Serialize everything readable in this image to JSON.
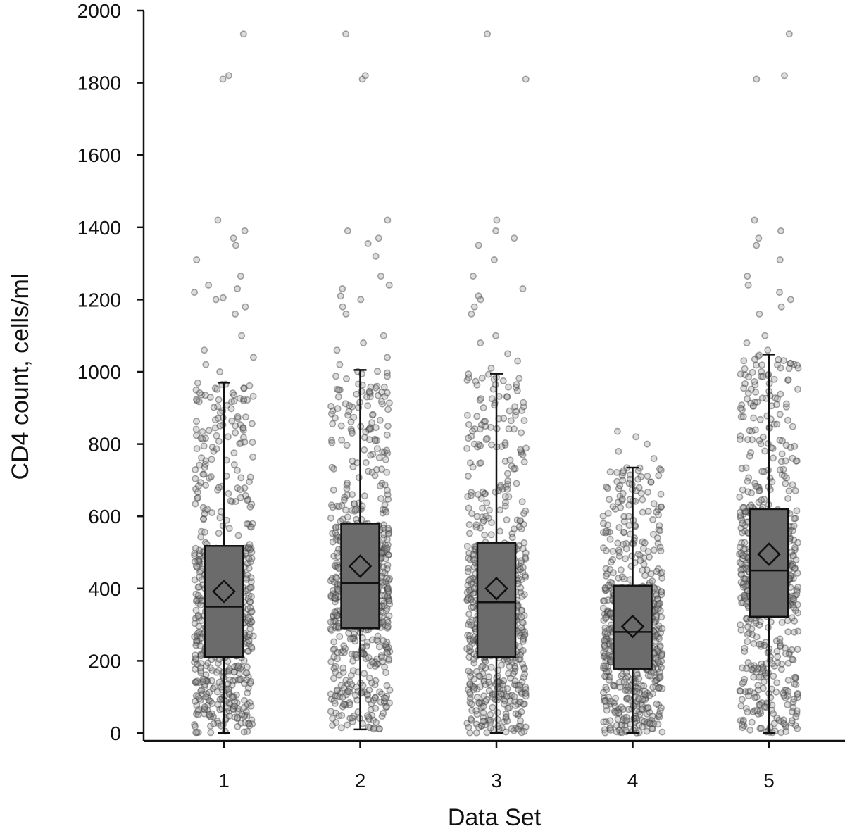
{
  "chart_data": {
    "type": "box",
    "title": "",
    "xlabel": "Data Set",
    "ylabel": "CD4 count, cells/ml",
    "ylim": [
      0,
      2000
    ],
    "yticks": [
      0,
      200,
      400,
      600,
      800,
      1000,
      1200,
      1400,
      1600,
      1800,
      2000
    ],
    "categories": [
      "1",
      "2",
      "3",
      "4",
      "5"
    ],
    "grid": false,
    "legend": "none",
    "colors": {
      "box_fill": "#6b6b6b",
      "point": "#8a8a8a",
      "axis": "#111111"
    },
    "series": [
      {
        "category": "1",
        "min": 0,
        "q1": 210,
        "median": 350,
        "mean": 392,
        "q3": 518,
        "whisker_high": 970,
        "outliers": [
          1000,
          1020,
          1040,
          1060,
          1100,
          1160,
          1180,
          1200,
          1205,
          1220,
          1230,
          1240,
          1265,
          1310,
          1350,
          1370,
          1390,
          1420,
          1810,
          1820,
          1935
        ]
      },
      {
        "category": "2",
        "min": 10,
        "q1": 290,
        "median": 415,
        "mean": 462,
        "q3": 580,
        "whisker_high": 1005,
        "outliers": [
          1020,
          1040,
          1060,
          1080,
          1100,
          1160,
          1180,
          1200,
          1210,
          1230,
          1240,
          1265,
          1320,
          1355,
          1370,
          1390,
          1420,
          1810,
          1820,
          1935
        ]
      },
      {
        "category": "3",
        "min": 0,
        "q1": 210,
        "median": 362,
        "mean": 400,
        "q3": 527,
        "whisker_high": 995,
        "outliers": [
          1010,
          1030,
          1050,
          1080,
          1100,
          1160,
          1180,
          1200,
          1210,
          1230,
          1265,
          1310,
          1350,
          1370,
          1390,
          1420,
          1810,
          1935
        ]
      },
      {
        "category": "4",
        "min": 0,
        "q1": 178,
        "median": 280,
        "mean": 295,
        "q3": 408,
        "whisker_high": 735,
        "outliers": [
          760,
          780,
          800,
          820,
          835
        ]
      },
      {
        "category": "5",
        "min": 0,
        "q1": 322,
        "median": 450,
        "mean": 495,
        "q3": 620,
        "whisker_high": 1048,
        "outliers": [
          1060,
          1080,
          1100,
          1160,
          1180,
          1200,
          1220,
          1240,
          1265,
          1310,
          1350,
          1370,
          1390,
          1420,
          1810,
          1820,
          1935
        ]
      }
    ]
  }
}
